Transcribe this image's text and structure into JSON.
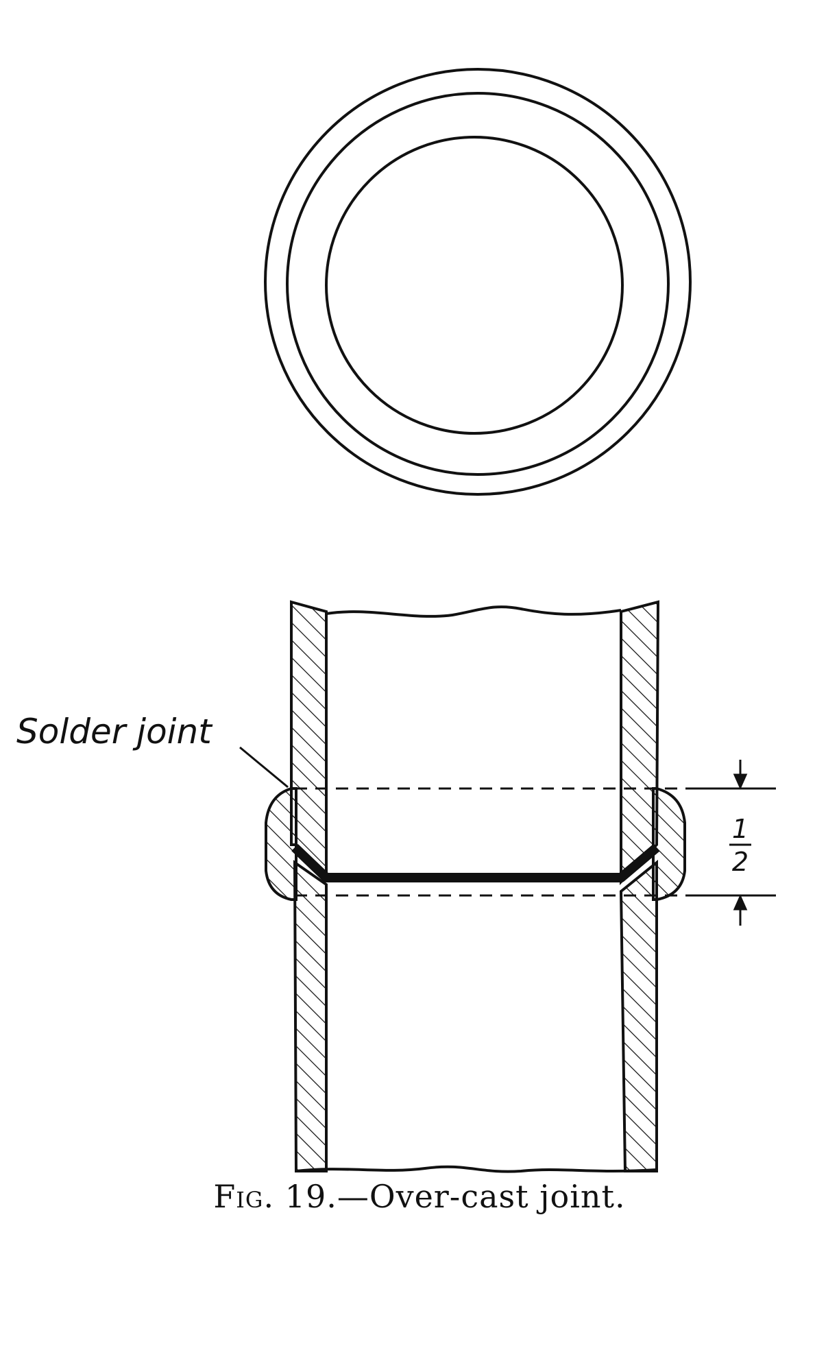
{
  "figure": {
    "callout_label": "Solder joint",
    "dimension": {
      "numerator": "1",
      "denominator": "2"
    },
    "caption": {
      "prefix": "Fig.",
      "number": "19.",
      "text": "—Over-cast joint."
    }
  },
  "colors": {
    "ink": "#111111",
    "paper": "#ffffff"
  }
}
